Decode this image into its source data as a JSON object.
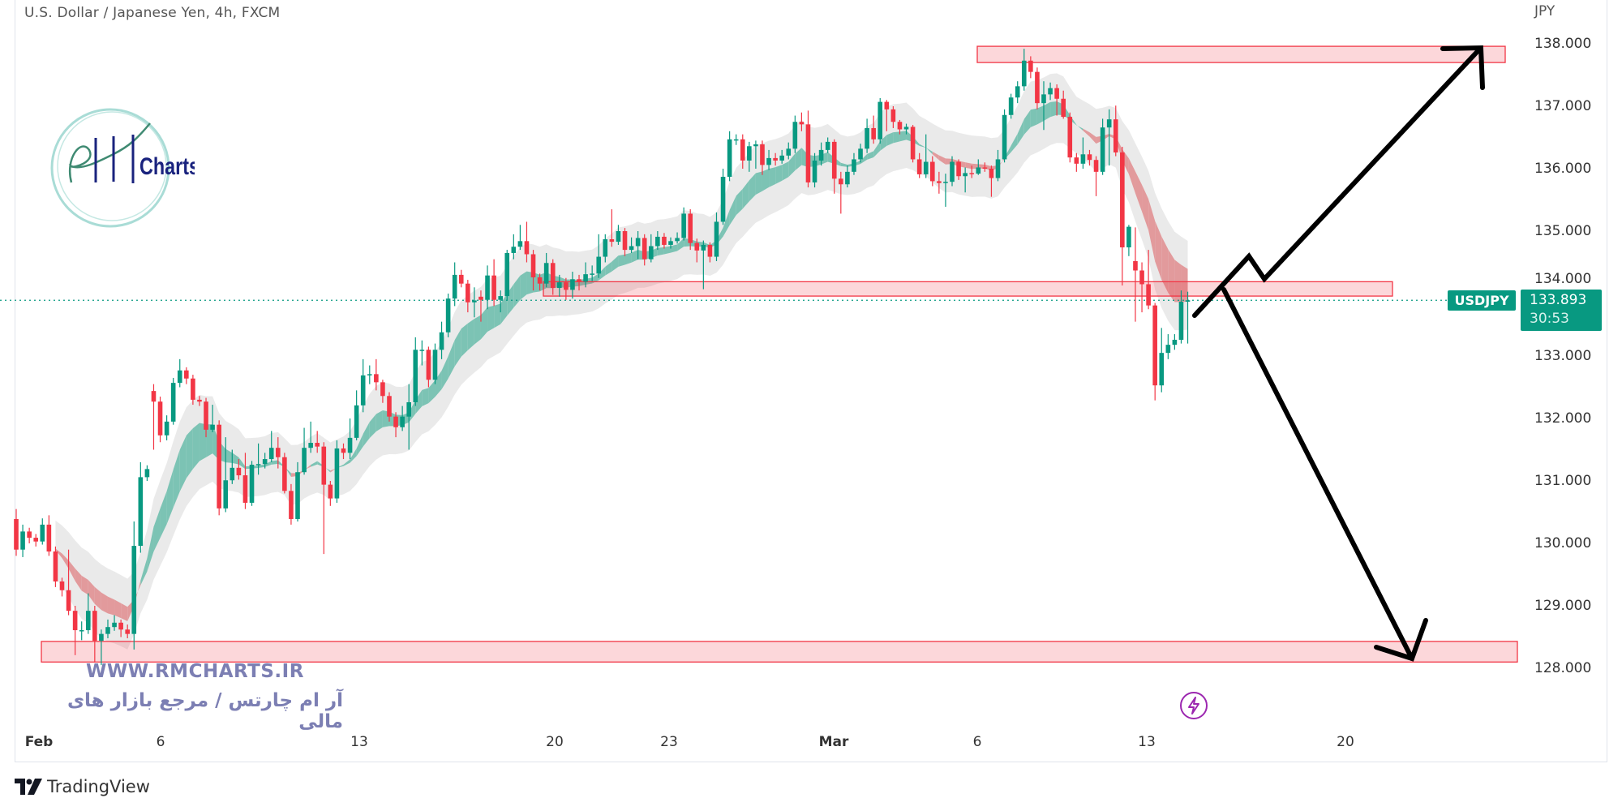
{
  "header": {
    "title": "U.S. Dollar / Japanese Yen, 4h, FXCM"
  },
  "price_axis": {
    "currency": "JPY"
  },
  "last_price": {
    "symbol": "USDJPY",
    "price": "133.893",
    "countdown": "30:53",
    "color": "#089981"
  },
  "watermark": {
    "logo_text": "Charts",
    "website": "WWW.RMCHARTS.IR",
    "tagline": "آر ام چارتس / مرجع بازار های مالی"
  },
  "footer": {
    "brand": "TradingView"
  },
  "colors": {
    "up": "#089981",
    "down": "#f23645",
    "ribbon_up": "#7cc3b4",
    "ribbon_down": "#e29a9c",
    "envelope": "#e6e6e6",
    "zone_fill": "rgba(242,54,69,0.2)",
    "zone_border": "#f23645"
  },
  "chart_data": {
    "type": "candlestick",
    "symbol": "USDJPY",
    "timeframe": "4h",
    "ylim": [
      127.27,
      138.7
    ],
    "yticks": [
      "138.000",
      "137.000",
      "136.000",
      "135.000",
      "134.000",
      "133.000",
      "132.000",
      "131.000",
      "130.000",
      "129.000",
      "128.000"
    ],
    "xticks": [
      {
        "label": "Feb",
        "bold": true
      },
      {
        "label": "6"
      },
      {
        "label": "13"
      },
      {
        "label": "20"
      },
      {
        "label": "23"
      },
      {
        "label": "Mar",
        "bold": true
      },
      {
        "label": "6"
      },
      {
        "label": "13"
      },
      {
        "label": "20"
      }
    ],
    "zones": [
      {
        "name": "resistance-zone",
        "low": 137.7,
        "high": 137.96
      },
      {
        "name": "pivot-zone",
        "low": 133.96,
        "high": 134.19
      },
      {
        "name": "support-zone",
        "low": 128.1,
        "high": 128.43
      }
    ],
    "candles_ohlc": [
      [
        130.39,
        130.55,
        129.8,
        129.9
      ],
      [
        129.9,
        130.3,
        129.78,
        130.19
      ],
      [
        130.19,
        130.25,
        130.0,
        130.09
      ],
      [
        130.09,
        130.15,
        129.95,
        130.03
      ],
      [
        130.03,
        130.4,
        129.98,
        130.3
      ],
      [
        130.3,
        130.45,
        129.8,
        129.87
      ],
      [
        129.87,
        129.95,
        129.3,
        129.39
      ],
      [
        129.39,
        129.45,
        129.15,
        129.25
      ],
      [
        129.25,
        129.9,
        128.85,
        128.92
      ],
      [
        128.92,
        129.0,
        128.21,
        128.61
      ],
      [
        128.61,
        128.75,
        128.45,
        128.61
      ],
      [
        128.61,
        129.2,
        128.55,
        128.92
      ],
      [
        128.92,
        129.0,
        128.09,
        128.44
      ],
      [
        128.44,
        128.62,
        128.05,
        128.55
      ],
      [
        128.55,
        128.78,
        128.48,
        128.66
      ],
      [
        128.66,
        128.85,
        128.6,
        128.73
      ],
      [
        128.73,
        128.78,
        128.5,
        128.62
      ],
      [
        128.62,
        128.7,
        128.48,
        128.55
      ],
      [
        128.55,
        130.35,
        128.3,
        129.96
      ],
      [
        129.96,
        131.3,
        129.85,
        131.06
      ],
      [
        131.06,
        131.25,
        131.0,
        131.19
      ],
      [
        132.44,
        132.55,
        131.5,
        132.27
      ],
      [
        132.27,
        132.35,
        131.62,
        131.73
      ],
      [
        131.73,
        132.05,
        131.65,
        131.95
      ],
      [
        131.95,
        132.65,
        131.9,
        132.57
      ],
      [
        132.57,
        132.95,
        132.5,
        132.77
      ],
      [
        132.77,
        132.82,
        132.55,
        132.64
      ],
      [
        132.64,
        132.7,
        132.22,
        132.3
      ],
      [
        132.3,
        132.36,
        132.2,
        132.27
      ],
      [
        132.27,
        132.33,
        131.7,
        131.82
      ],
      [
        131.82,
        132.22,
        131.78,
        131.9
      ],
      [
        131.9,
        131.97,
        130.45,
        130.56
      ],
      [
        130.56,
        131.7,
        130.5,
        131.01
      ],
      [
        131.01,
        131.5,
        130.95,
        131.21
      ],
      [
        131.21,
        131.35,
        131.02,
        131.09
      ],
      [
        131.09,
        131.45,
        130.55,
        130.65
      ],
      [
        130.65,
        131.32,
        130.6,
        131.26
      ],
      [
        131.26,
        131.6,
        131.1,
        131.27
      ],
      [
        131.27,
        131.45,
        131.2,
        131.35
      ],
      [
        131.35,
        131.8,
        131.3,
        131.53
      ],
      [
        131.53,
        131.7,
        131.2,
        131.38
      ],
      [
        131.38,
        131.45,
        130.8,
        130.84
      ],
      [
        130.84,
        130.95,
        130.3,
        130.39
      ],
      [
        130.39,
        131.3,
        130.35,
        131.14
      ],
      [
        131.14,
        131.85,
        131.1,
        131.53
      ],
      [
        131.53,
        131.95,
        131.45,
        131.61
      ],
      [
        131.61,
        131.8,
        131.45,
        131.55
      ],
      [
        131.55,
        131.62,
        129.83,
        130.94
      ],
      [
        130.94,
        131.0,
        130.6,
        130.72
      ],
      [
        130.72,
        131.65,
        130.65,
        131.52
      ],
      [
        131.52,
        131.6,
        131.35,
        131.45
      ],
      [
        131.45,
        132.0,
        131.35,
        131.69
      ],
      [
        131.69,
        132.45,
        131.65,
        132.21
      ],
      [
        132.21,
        132.95,
        132.1,
        132.69
      ],
      [
        132.69,
        132.85,
        132.55,
        132.71
      ],
      [
        132.71,
        132.95,
        132.45,
        132.58
      ],
      [
        132.58,
        132.62,
        132.25,
        132.36
      ],
      [
        132.36,
        132.42,
        131.95,
        132.03
      ],
      [
        132.03,
        132.1,
        131.7,
        131.86
      ],
      [
        131.86,
        132.2,
        131.8,
        132.03
      ],
      [
        132.03,
        132.55,
        131.5,
        132.26
      ],
      [
        132.26,
        133.3,
        132.2,
        133.1
      ],
      [
        133.1,
        133.25,
        132.85,
        133.1
      ],
      [
        133.1,
        133.15,
        132.5,
        132.62
      ],
      [
        132.62,
        133.2,
        132.55,
        133.1
      ],
      [
        133.1,
        133.55,
        132.95,
        133.38
      ],
      [
        133.38,
        134.0,
        133.3,
        133.92
      ],
      [
        133.92,
        134.5,
        133.8,
        134.3
      ],
      [
        134.3,
        134.38,
        134.1,
        134.16
      ],
      [
        134.16,
        134.22,
        133.7,
        133.86
      ],
      [
        133.86,
        134.1,
        133.62,
        133.89
      ],
      [
        133.95,
        134.05,
        133.55,
        133.9
      ],
      [
        133.9,
        134.45,
        133.75,
        134.29
      ],
      [
        134.29,
        134.55,
        133.8,
        133.9
      ],
      [
        133.9,
        134.05,
        133.7,
        133.96
      ],
      [
        133.96,
        134.7,
        133.9,
        134.65
      ],
      [
        134.65,
        134.95,
        134.55,
        134.75
      ],
      [
        134.75,
        135.1,
        134.7,
        134.84
      ],
      [
        134.84,
        135.15,
        134.5,
        134.63
      ],
      [
        134.63,
        134.7,
        134.05,
        134.26
      ],
      [
        134.26,
        134.32,
        134.05,
        134.16
      ],
      [
        134.16,
        134.65,
        134.1,
        134.49
      ],
      [
        134.49,
        134.55,
        133.98,
        134.09
      ],
      [
        134.09,
        134.3,
        133.95,
        134.18
      ],
      [
        134.18,
        134.25,
        133.9,
        134.06
      ],
      [
        134.06,
        134.35,
        133.92,
        134.23
      ],
      [
        134.23,
        134.3,
        134.05,
        134.19
      ],
      [
        134.19,
        134.5,
        134.1,
        134.31
      ],
      [
        134.31,
        134.45,
        134.2,
        134.32
      ],
      [
        134.32,
        134.95,
        134.25,
        134.59
      ],
      [
        134.59,
        134.95,
        134.5,
        134.87
      ],
      [
        134.87,
        135.35,
        134.75,
        134.83
      ],
      [
        134.83,
        135.1,
        134.78,
        135.0
      ],
      [
        135.0,
        135.05,
        134.6,
        134.7
      ],
      [
        134.7,
        134.9,
        134.65,
        134.76
      ],
      [
        134.76,
        135.0,
        134.55,
        134.89
      ],
      [
        134.89,
        134.95,
        134.45,
        134.55
      ],
      [
        134.55,
        134.95,
        134.5,
        134.76
      ],
      [
        134.76,
        135.0,
        134.7,
        134.91
      ],
      [
        134.91,
        134.97,
        134.72,
        134.78
      ],
      [
        134.78,
        134.9,
        134.72,
        134.84
      ],
      [
        134.84,
        134.98,
        134.8,
        134.89
      ],
      [
        134.89,
        135.38,
        134.85,
        135.28
      ],
      [
        135.28,
        135.35,
        134.7,
        134.81
      ],
      [
        134.81,
        134.88,
        134.5,
        134.69
      ],
      [
        134.69,
        134.85,
        134.07,
        134.78
      ],
      [
        134.78,
        134.82,
        134.5,
        134.59
      ],
      [
        134.59,
        135.3,
        134.52,
        135.15
      ],
      [
        135.15,
        136.0,
        135.1,
        135.87
      ],
      [
        135.87,
        136.6,
        135.8,
        136.47
      ],
      [
        136.47,
        136.55,
        136.38,
        136.47
      ],
      [
        136.47,
        136.55,
        136.0,
        136.13
      ],
      [
        136.13,
        136.43,
        135.95,
        136.36
      ],
      [
        136.36,
        136.45,
        136.0,
        136.39
      ],
      [
        136.39,
        136.45,
        135.9,
        136.06
      ],
      [
        136.06,
        136.3,
        135.98,
        136.17
      ],
      [
        136.17,
        136.25,
        136.05,
        136.13
      ],
      [
        136.13,
        136.3,
        136.08,
        136.21
      ],
      [
        136.21,
        136.42,
        136.15,
        136.32
      ],
      [
        136.32,
        136.85,
        136.25,
        136.75
      ],
      [
        136.75,
        136.9,
        136.6,
        136.71
      ],
      [
        136.71,
        136.93,
        135.7,
        135.78
      ],
      [
        135.78,
        136.25,
        135.7,
        136.13
      ],
      [
        136.13,
        136.42,
        136.05,
        136.3
      ],
      [
        136.3,
        136.5,
        136.25,
        136.43
      ],
      [
        136.43,
        136.47,
        135.6,
        135.84
      ],
      [
        135.84,
        135.95,
        135.28,
        135.75
      ],
      [
        135.75,
        136.05,
        135.7,
        135.95
      ],
      [
        135.95,
        136.25,
        135.9,
        136.15
      ],
      [
        136.15,
        136.4,
        136.1,
        136.32
      ],
      [
        136.32,
        136.8,
        136.25,
        136.65
      ],
      [
        136.65,
        136.85,
        136.4,
        136.47
      ],
      [
        136.47,
        137.13,
        136.4,
        137.07
      ],
      [
        137.07,
        137.1,
        136.6,
        136.95
      ],
      [
        136.95,
        137.0,
        136.65,
        136.75
      ],
      [
        136.75,
        136.78,
        136.55,
        136.63
      ],
      [
        136.63,
        136.72,
        136.55,
        136.67
      ],
      [
        136.67,
        136.7,
        136.1,
        136.15
      ],
      [
        136.15,
        136.25,
        135.85,
        135.91
      ],
      [
        135.91,
        136.55,
        135.85,
        136.11
      ],
      [
        136.11,
        136.2,
        135.72,
        135.8
      ],
      [
        135.8,
        135.95,
        135.6,
        135.77
      ],
      [
        135.77,
        135.92,
        135.39,
        135.79
      ],
      [
        135.79,
        136.2,
        135.72,
        136.11
      ],
      [
        136.11,
        136.15,
        135.82,
        135.88
      ],
      [
        135.88,
        136.02,
        135.62,
        135.93
      ],
      [
        135.93,
        136.05,
        135.85,
        135.92
      ],
      [
        135.92,
        136.15,
        135.9,
        136.02
      ],
      [
        136.02,
        136.1,
        135.95,
        136.0
      ],
      [
        136.0,
        136.05,
        135.55,
        135.85
      ],
      [
        135.85,
        136.3,
        135.8,
        136.15
      ],
      [
        136.15,
        136.95,
        136.1,
        136.86
      ],
      [
        136.86,
        137.2,
        136.8,
        137.14
      ],
      [
        137.14,
        137.4,
        137.05,
        137.32
      ],
      [
        137.32,
        137.92,
        137.25,
        137.73
      ],
      [
        137.73,
        137.8,
        137.45,
        137.55
      ],
      [
        137.55,
        137.62,
        136.95,
        137.05
      ],
      [
        137.05,
        137.4,
        136.62,
        137.19
      ],
      [
        137.19,
        137.38,
        137.1,
        137.29
      ],
      [
        137.29,
        137.35,
        136.85,
        137.12
      ],
      [
        137.12,
        137.25,
        136.8,
        136.83
      ],
      [
        136.83,
        136.9,
        136.1,
        136.18
      ],
      [
        136.18,
        136.25,
        135.95,
        136.08
      ],
      [
        136.08,
        136.5,
        136.0,
        136.23
      ],
      [
        136.23,
        136.3,
        136.05,
        136.14
      ],
      [
        136.14,
        136.2,
        135.56,
        135.95
      ],
      [
        135.95,
        136.8,
        135.9,
        136.66
      ],
      [
        136.66,
        136.95,
        136.05,
        136.79
      ],
      [
        136.79,
        137.01,
        136.2,
        136.26
      ],
      [
        136.26,
        136.35,
        134.13,
        134.74
      ],
      [
        134.74,
        135.1,
        134.6,
        135.07
      ],
      [
        134.52,
        135.06,
        133.55,
        134.37
      ],
      [
        134.37,
        134.5,
        133.7,
        134.15
      ],
      [
        134.15,
        134.7,
        133.75,
        133.81
      ],
      [
        133.81,
        133.85,
        132.29,
        132.53
      ],
      [
        132.53,
        133.45,
        132.42,
        133.05
      ],
      [
        133.05,
        133.35,
        132.95,
        133.18
      ],
      [
        133.18,
        133.35,
        133.1,
        133.26
      ],
      [
        133.26,
        134.05,
        133.2,
        133.87
      ],
      [
        133.87,
        134.03,
        133.2,
        133.893
      ]
    ]
  }
}
